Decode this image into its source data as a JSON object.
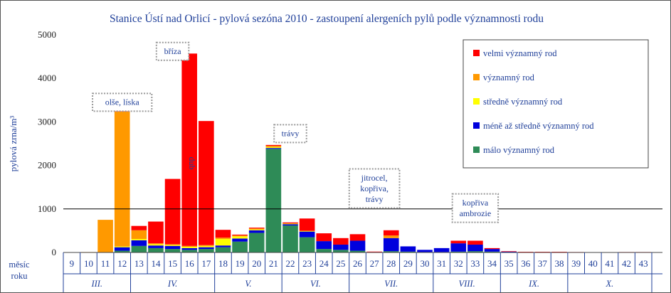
{
  "chart_data": {
    "type": "bar",
    "title": "Stanice Ústí nad Orlicí - pylová sezóna 2010 - zastoupení alergeních pylů podle významnosti rodu",
    "ylabel": "pylová zrna/m³",
    "ylim": [
      0,
      5000
    ],
    "yticks": [
      0,
      1000,
      2000,
      3000,
      4000,
      5000
    ],
    "reference_line": 1000,
    "grid": false,
    "legend_position": "top-right",
    "row_label_1": "měsíc",
    "row_label_2": "roku",
    "categories": [
      "9",
      "10",
      "11",
      "12",
      "13",
      "14",
      "15",
      "16",
      "17",
      "18",
      "19",
      "20",
      "21",
      "22",
      "23",
      "24",
      "25",
      "26",
      "27",
      "28",
      "29",
      "30",
      "31",
      "32",
      "33",
      "34",
      "35",
      "36",
      "37",
      "38",
      "39",
      "40",
      "41",
      "42",
      "43"
    ],
    "months": [
      {
        "label": "III.",
        "from": "9",
        "to": "12"
      },
      {
        "label": "IV.",
        "from": "13",
        "to": "17"
      },
      {
        "label": "V.",
        "from": "18",
        "to": "21"
      },
      {
        "label": "VI.",
        "from": "22",
        "to": "25"
      },
      {
        "label": "VII.",
        "from": "26",
        "to": "30"
      },
      {
        "label": "VIII.",
        "from": "31",
        "to": "34"
      },
      {
        "label": "IX.",
        "from": "35",
        "to": "38"
      },
      {
        "label": "X.",
        "from": "39",
        "to": "43"
      }
    ],
    "series": [
      {
        "name": "málo významný rod",
        "color": "#2e8b57",
        "values": [
          0,
          0,
          0,
          40,
          150,
          100,
          80,
          60,
          80,
          120,
          250,
          450,
          2380,
          620,
          350,
          80,
          60,
          40,
          0,
          30,
          20,
          10,
          10,
          20,
          30,
          20,
          0,
          0,
          0,
          0,
          0,
          0,
          0,
          0,
          0
        ]
      },
      {
        "name": "méně až středně významný rod",
        "color": "#0000dd",
        "values": [
          0,
          0,
          0,
          80,
          130,
          60,
          70,
          40,
          40,
          40,
          70,
          60,
          20,
          30,
          130,
          180,
          120,
          230,
          10,
          300,
          120,
          50,
          90,
          190,
          150,
          60,
          20,
          5,
          5,
          5,
          0,
          0,
          0,
          5,
          5
        ]
      },
      {
        "name": "středně významný rod",
        "color": "#ffff00",
        "values": [
          0,
          0,
          0,
          20,
          30,
          30,
          20,
          30,
          30,
          150,
          50,
          20,
          20,
          10,
          10,
          0,
          0,
          0,
          0,
          0,
          0,
          0,
          0,
          0,
          0,
          0,
          0,
          0,
          0,
          0,
          0,
          0,
          0,
          0,
          0
        ]
      },
      {
        "name": "významný rod",
        "color": "#ff9900",
        "values": [
          0,
          10,
          750,
          3100,
          200,
          20,
          20,
          20,
          20,
          30,
          20,
          20,
          30,
          10,
          10,
          0,
          0,
          0,
          0,
          60,
          0,
          0,
          0,
          0,
          0,
          0,
          0,
          0,
          0,
          0,
          0,
          0,
          0,
          0,
          0
        ]
      },
      {
        "name": "velmi významný rod",
        "color": "#ff0000",
        "values": [
          0,
          0,
          0,
          30,
          100,
          500,
          1500,
          4420,
          2850,
          180,
          20,
          20,
          20,
          20,
          280,
          180,
          150,
          150,
          10,
          120,
          0,
          0,
          0,
          60,
          90,
          20,
          10,
          10,
          10,
          10,
          10,
          5,
          5,
          5,
          5
        ]
      }
    ],
    "annotations": [
      {
        "text": "olše, líska",
        "category": "12",
        "value": 3450
      },
      {
        "text": "bříza",
        "category": "15",
        "value": 4620
      },
      {
        "text": "trávy",
        "category": "22",
        "value": 2730
      },
      {
        "text": "jitrocel,",
        "text2": "kopřiva,",
        "text3": "trávy",
        "category": "27",
        "value": 1470
      },
      {
        "text": "kopřiva",
        "text2": "ambrozie",
        "category": "33",
        "value": 1020
      }
    ],
    "bar_label": {
      "text": "dub",
      "category": "16",
      "value": 2050
    }
  }
}
